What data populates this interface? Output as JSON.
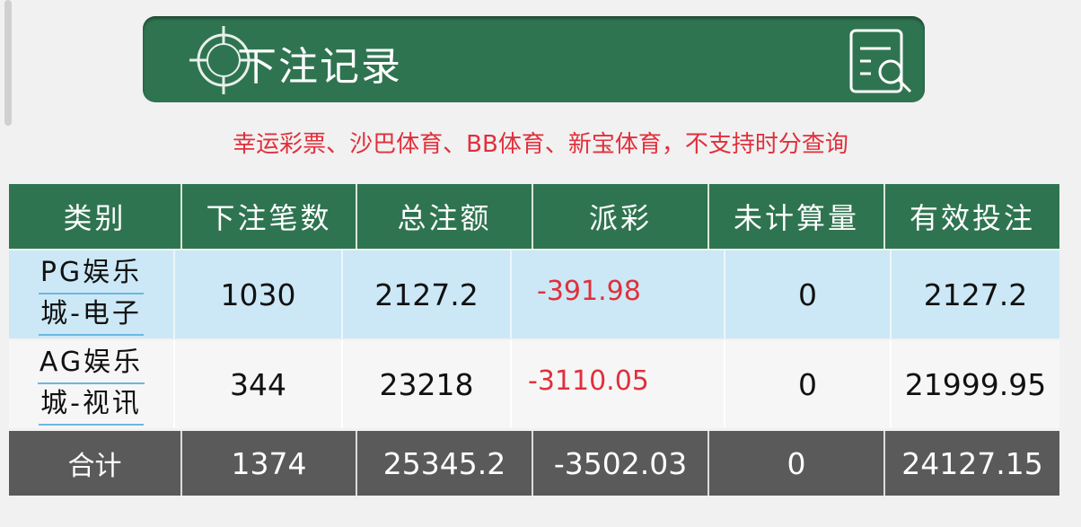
{
  "header": {
    "title": "下注记录",
    "left_icon": "crosshair-target-icon",
    "right_icon": "document-search-icon"
  },
  "notice": "幸运彩票、沙巴体育、BB体育、新宝体育，不支持时分查询",
  "table": {
    "columns": [
      "类别",
      "下注笔数",
      "总注额",
      "派彩",
      "未计算量",
      "有效投注"
    ],
    "rows": [
      {
        "category_line1": "PG娱乐",
        "category_line2": "城-电子",
        "count": "1030",
        "total": "2127.2",
        "payout": "-391.98",
        "unsettled": "0",
        "valid": "2127.2"
      },
      {
        "category_line1": "AG娱乐",
        "category_line2": "城-视讯",
        "count": "344",
        "total": "23218",
        "payout": "-3110.05",
        "unsettled": "0",
        "valid": "21999.95"
      }
    ],
    "totals": {
      "label": "合计",
      "count": "1374",
      "total": "25345.2",
      "payout": "-3502.03",
      "unsettled": "0",
      "valid": "24127.15"
    }
  },
  "colors": {
    "green": "#2f7450",
    "negative": "#e0303c",
    "highlight": "#cce8f6",
    "total_bg": "#5a5a5a"
  }
}
